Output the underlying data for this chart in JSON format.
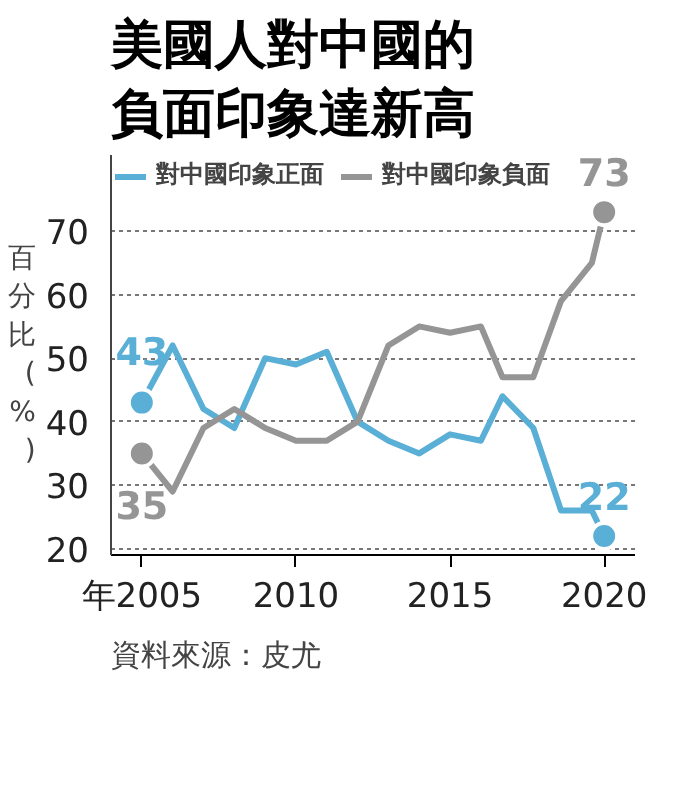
{
  "chart_data": {
    "type": "line",
    "title": "美國人對中國的負面印象達新高",
    "ylabel": "百分比(%)",
    "x": [
      2005,
      2006,
      2007,
      2008,
      2009,
      2010,
      2011,
      2012,
      2013,
      2014,
      2015,
      2016,
      2016.7,
      2017.7,
      2018.6,
      2019.6,
      2020
    ],
    "series": [
      {
        "name": "對中國印象正面",
        "color": "#5aafd6",
        "values": [
          43,
          52,
          42,
          39,
          50,
          49,
          51,
          40,
          37,
          35,
          38,
          37,
          44,
          39,
          26,
          26,
          22
        ],
        "value_labels": [
          "43",
          null,
          null,
          null,
          null,
          null,
          null,
          null,
          null,
          null,
          null,
          null,
          null,
          null,
          null,
          null,
          "22"
        ]
      },
      {
        "name": "對中國印象負面",
        "color": "#959595",
        "values": [
          35,
          29,
          39,
          42,
          39,
          37,
          37,
          40,
          52,
          55,
          54,
          55,
          47,
          47,
          59,
          65,
          73
        ],
        "value_labels": [
          "35",
          null,
          null,
          null,
          null,
          null,
          null,
          null,
          null,
          null,
          null,
          null,
          null,
          null,
          null,
          null,
          "73"
        ]
      }
    ],
    "xlim": [
      2004,
      2021
    ],
    "ylim": [
      19,
      82
    ],
    "xticks": [
      {
        "value": 2005,
        "label": "年2005"
      },
      2010,
      2015,
      2020
    ],
    "yticks": [
      20,
      30,
      40,
      50,
      60,
      70
    ],
    "grid": "y",
    "legend": "top",
    "marker": "none",
    "line_style": "solid",
    "annotations": [
      "資料來源：皮尤"
    ]
  }
}
